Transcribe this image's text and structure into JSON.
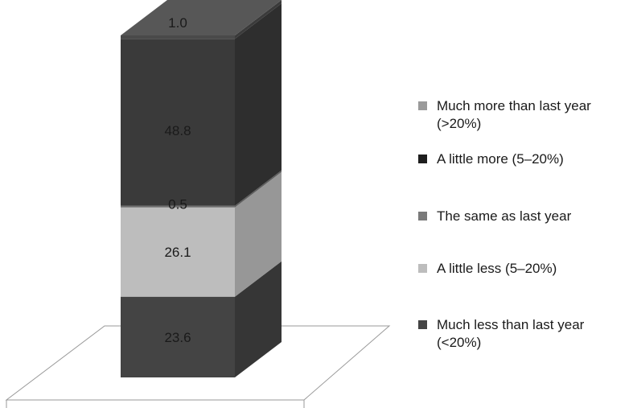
{
  "chart_data": {
    "type": "bar",
    "stacked": true,
    "three_d": true,
    "title": "",
    "xlabel": "",
    "ylabel": "",
    "series": [
      {
        "name": "Much less than last year (<20%)",
        "value": 23.6,
        "color": "#444444"
      },
      {
        "name": "A little less (5–20%)",
        "value": 26.1,
        "color": "#bdbdbd"
      },
      {
        "name": "The same as last year",
        "value": 0.5,
        "color": "#6e6e6e"
      },
      {
        "name": "A little more (5–20%)",
        "value": 48.8,
        "color": "#3a3a3a"
      },
      {
        "name": "Much more than last year (>20%)",
        "value": 1.0,
        "color": "#4a4a4a"
      }
    ],
    "data_labels": [
      "23.6",
      "26.1",
      "0.5",
      "48.8",
      "1.0"
    ],
    "legend": {
      "placement": "right",
      "order": [
        "Much more than last year (>20%)",
        "A little more (5–20%)",
        "The same as last year",
        "A little less (5–20%)",
        "Much less than last year (<20%)"
      ],
      "colors": [
        "#9a9a9a",
        "#1e1e1e",
        "#7a7a7a",
        "#bdbdbd",
        "#444444"
      ]
    }
  }
}
